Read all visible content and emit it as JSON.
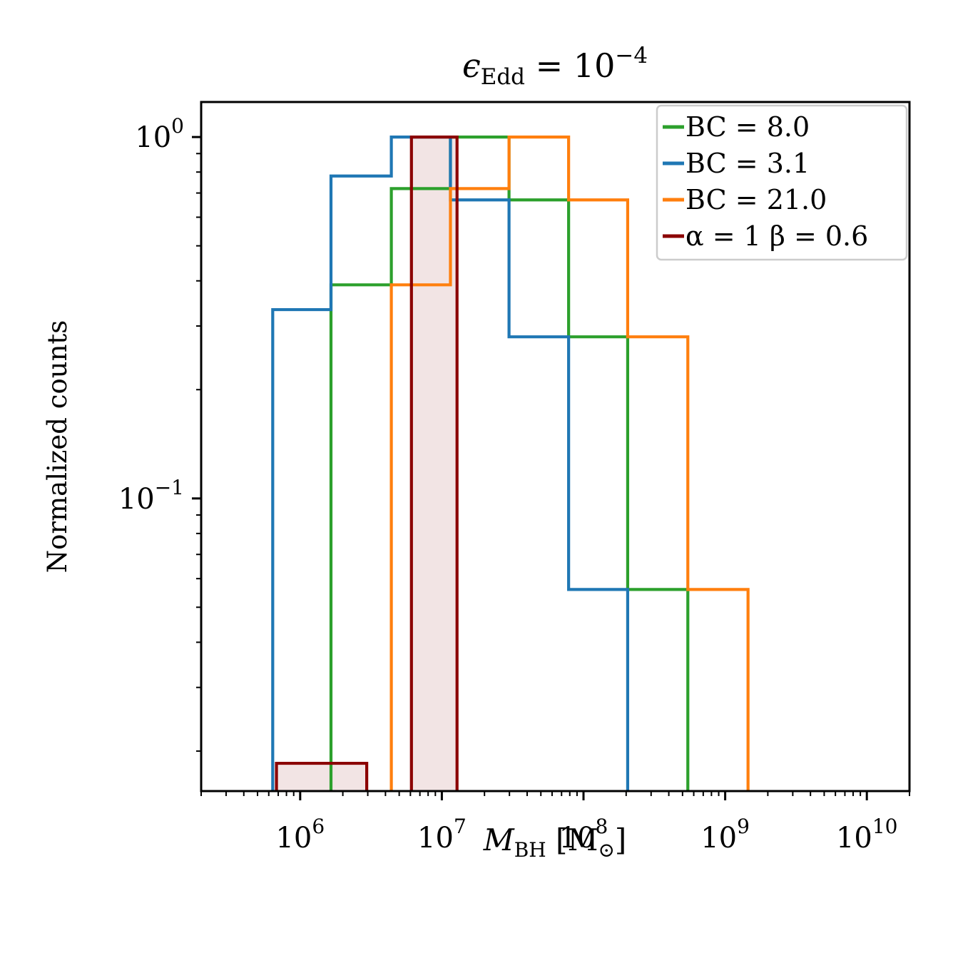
{
  "chart_data": {
    "type": "histogram",
    "title": {
      "main": "ϵ",
      "sub": "Edd",
      "rest": " = 10",
      "sup": "−4"
    },
    "xlabel": {
      "main": "M",
      "sub": "BH",
      "rest": " [M",
      "sub2": "⊙",
      "close": "]"
    },
    "ylabel": "Normalized counts",
    "xscale": "log",
    "yscale": "log",
    "xlim": [
      200000,
      20000000000
    ],
    "ylim": [
      0.0155,
      1.25
    ],
    "x_ticks": [
      {
        "value": 1000000,
        "base": "10",
        "exp": "6"
      },
      {
        "value": 10000000,
        "base": "10",
        "exp": "7"
      },
      {
        "value": 100000000,
        "base": "10",
        "exp": "8"
      },
      {
        "value": 1000000000,
        "base": "10",
        "exp": "9"
      },
      {
        "value": 10000000000,
        "base": "10",
        "exp": "10"
      }
    ],
    "y_ticks": [
      {
        "value": 1,
        "base": "10",
        "exp": "0"
      },
      {
        "value": 0.1,
        "base": "10",
        "exp": "−1"
      }
    ],
    "legend_position": "top-right",
    "series": [
      {
        "name": "BC = 8.0",
        "color": "#2ca02c",
        "edges": [
          1650000,
          4400000,
          11500000,
          29800000,
          78500000,
          205000000,
          545000000
        ],
        "counts": [
          0.39,
          0.72,
          1.0,
          0.67,
          0.28,
          0.056
        ]
      },
      {
        "name": "BC = 3.1",
        "color": "#1f77b4",
        "edges": [
          640000,
          1650000,
          4400000,
          11500000,
          29800000,
          78500000,
          205000000
        ],
        "counts": [
          0.333,
          0.78,
          1.0,
          0.67,
          0.28,
          0.056
        ]
      },
      {
        "name": "BC = 21.0",
        "color": "#ff7f0e",
        "edges": [
          4400000,
          11500000,
          29800000,
          78500000,
          205000000,
          545000000,
          1450000000
        ],
        "counts": [
          0.39,
          0.72,
          1.0,
          0.67,
          0.28,
          0.056
        ]
      },
      {
        "name": "α = 1 β = 0.6",
        "color": "#8b0000",
        "fill": "#f2e4e4",
        "edges": [
          680000,
          2950000,
          6100000,
          12800000
        ],
        "counts": [
          0.0185,
          0,
          1.0
        ]
      }
    ]
  }
}
